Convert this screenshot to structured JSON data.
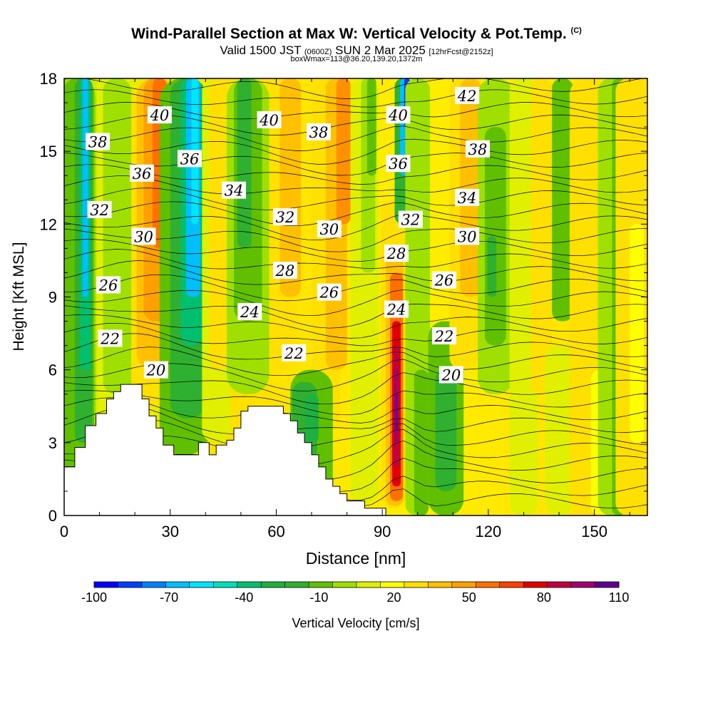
{
  "header": {
    "title": "Wind-Parallel Section at Max W: Vertical Velocity & Pot.Temp.",
    "copyright": "(C)",
    "valid_prefix": "Valid 1500 JST",
    "valid_zulu": "(0600Z)",
    "valid_date": "SUN 2 Mar 2025",
    "forecast_info": "[12hrFcst@2152z]",
    "box_info": "boxWmax=113@36.20,139.20,1372m"
  },
  "chart_data": {
    "type": "heatmap",
    "xlabel": "Distance [nm]",
    "ylabel": "Height [Kft MSL]",
    "xlim": [
      0,
      165
    ],
    "ylim": [
      0,
      18
    ],
    "x_ticks": [
      0,
      30,
      60,
      90,
      120,
      150
    ],
    "y_ticks": [
      0,
      3,
      6,
      9,
      12,
      15,
      18
    ],
    "colorbar": {
      "label": "Vertical Velocity [cm/s]",
      "min": -100,
      "max": 110,
      "step": 10,
      "tick_labels": [
        "-100",
        "-70",
        "-40",
        "-10",
        "20",
        "50",
        "80",
        "110"
      ],
      "colors": [
        "#0000ff",
        "#0040ff",
        "#0080ff",
        "#00bfff",
        "#00e5ff",
        "#00e0c0",
        "#00c070",
        "#20b040",
        "#30b030",
        "#60c000",
        "#a0e000",
        "#e0f000",
        "#ffff00",
        "#ffe000",
        "#ffc000",
        "#ffa000",
        "#ff7000",
        "#ff4000",
        "#e00000",
        "#c00040",
        "#a00070",
        "#600090"
      ]
    },
    "theta_contours": {
      "variable": "Potential Temperature",
      "labels": [
        {
          "text": "40",
          "x": 27,
          "y": 16.5
        },
        {
          "text": "38",
          "x": 9.5,
          "y": 15.4
        },
        {
          "text": "36",
          "x": 22,
          "y": 14.1
        },
        {
          "text": "36",
          "x": 35.5,
          "y": 14.7
        },
        {
          "text": "32",
          "x": 10,
          "y": 12.6
        },
        {
          "text": "30",
          "x": 22.5,
          "y": 11.5
        },
        {
          "text": "26",
          "x": 12.5,
          "y": 9.5
        },
        {
          "text": "22",
          "x": 13,
          "y": 7.3
        },
        {
          "text": "20",
          "x": 26,
          "y": 6.0
        },
        {
          "text": "40",
          "x": 58,
          "y": 16.3
        },
        {
          "text": "38",
          "x": 72,
          "y": 15.8
        },
        {
          "text": "34",
          "x": 48,
          "y": 13.4
        },
        {
          "text": "32",
          "x": 62.5,
          "y": 12.3
        },
        {
          "text": "30",
          "x": 75,
          "y": 11.8
        },
        {
          "text": "28",
          "x": 62.5,
          "y": 10.1
        },
        {
          "text": "26",
          "x": 75,
          "y": 9.2
        },
        {
          "text": "24",
          "x": 52.5,
          "y": 8.4
        },
        {
          "text": "22",
          "x": 65,
          "y": 6.7
        },
        {
          "text": "40",
          "x": 94.5,
          "y": 16.5
        },
        {
          "text": "36",
          "x": 94.5,
          "y": 14.5
        },
        {
          "text": "32",
          "x": 98,
          "y": 12.2
        },
        {
          "text": "28",
          "x": 94,
          "y": 10.8
        },
        {
          "text": "24",
          "x": 94,
          "y": 8.5
        },
        {
          "text": "42",
          "x": 114,
          "y": 17.3
        },
        {
          "text": "38",
          "x": 117,
          "y": 15.1
        },
        {
          "text": "34",
          "x": 114,
          "y": 13.1
        },
        {
          "text": "30",
          "x": 114,
          "y": 11.5
        },
        {
          "text": "26",
          "x": 107.5,
          "y": 9.7
        },
        {
          "text": "22",
          "x": 107.5,
          "y": 7.4
        },
        {
          "text": "20",
          "x": 109.5,
          "y": 5.8
        }
      ]
    },
    "terrain_nm_kft": [
      [
        0,
        2.0
      ],
      [
        3,
        2.0
      ],
      [
        3,
        2.8
      ],
      [
        6,
        2.8
      ],
      [
        6,
        3.7
      ],
      [
        9,
        3.7
      ],
      [
        9,
        4.2
      ],
      [
        12,
        4.2
      ],
      [
        12,
        4.8
      ],
      [
        14,
        4.8
      ],
      [
        14,
        5.1
      ],
      [
        16,
        5.1
      ],
      [
        16,
        5.4
      ],
      [
        22,
        5.4
      ],
      [
        22,
        4.8
      ],
      [
        24,
        4.8
      ],
      [
        24,
        4.1
      ],
      [
        26,
        4.1
      ],
      [
        26,
        3.6
      ],
      [
        28,
        3.6
      ],
      [
        28,
        2.9
      ],
      [
        31,
        2.9
      ],
      [
        31,
        2.5
      ],
      [
        38,
        2.5
      ],
      [
        38,
        3.0
      ],
      [
        41,
        3.0
      ],
      [
        41,
        2.5
      ],
      [
        43,
        2.5
      ],
      [
        43,
        2.9
      ],
      [
        46,
        2.9
      ],
      [
        46,
        3.1
      ],
      [
        48,
        3.1
      ],
      [
        48,
        3.6
      ],
      [
        50,
        3.6
      ],
      [
        50,
        4.3
      ],
      [
        52,
        4.3
      ],
      [
        52,
        4.5
      ],
      [
        62,
        4.5
      ],
      [
        62,
        4.2
      ],
      [
        64,
        4.2
      ],
      [
        64,
        3.9
      ],
      [
        66,
        3.9
      ],
      [
        66,
        3.4
      ],
      [
        68,
        3.4
      ],
      [
        68,
        3.0
      ],
      [
        70,
        3.0
      ],
      [
        70,
        2.5
      ],
      [
        72,
        2.5
      ],
      [
        72,
        2.0
      ],
      [
        74,
        2.0
      ],
      [
        74,
        1.5
      ],
      [
        76,
        1.5
      ],
      [
        76,
        1.2
      ],
      [
        78,
        1.2
      ],
      [
        78,
        0.9
      ],
      [
        80,
        0.9
      ],
      [
        80,
        0.6
      ],
      [
        85,
        0.6
      ],
      [
        85,
        0.3
      ],
      [
        91,
        0.3
      ],
      [
        91,
        0
      ]
    ]
  }
}
